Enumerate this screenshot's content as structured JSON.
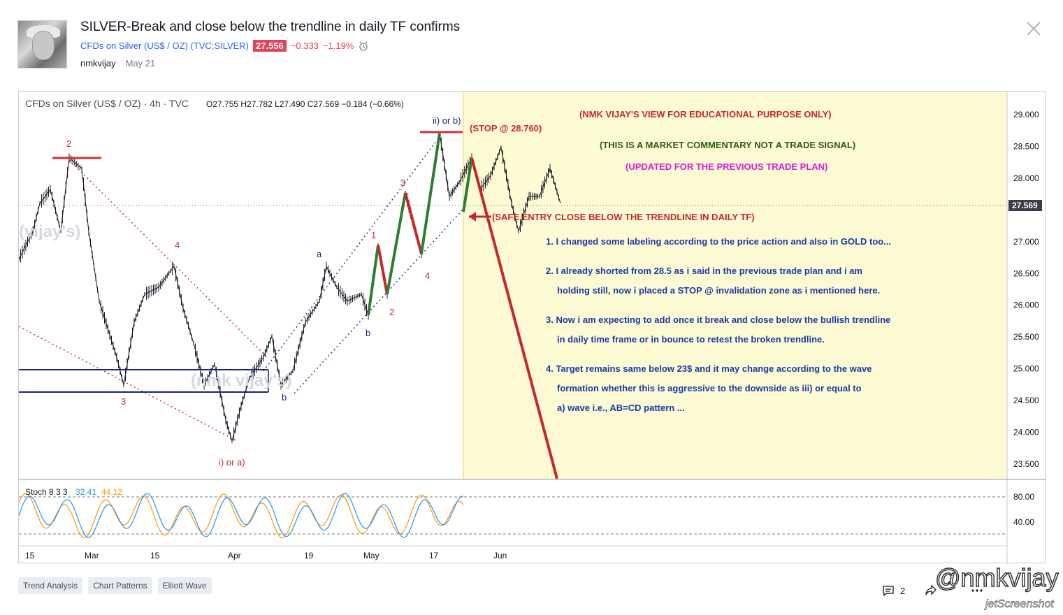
{
  "idea": {
    "title": "SILVER-Break and close below the trendline in daily TF confirms",
    "symbol_link": "CFDs on Silver (US$ / OZ) (TVC:SILVER)",
    "price": "27.556",
    "change": "−0.333",
    "change_pct": "−1.19%",
    "author": "nmkvijay",
    "date": "May 21"
  },
  "chart": {
    "header_name": "CFDs on Silver (US$ / OZ) · 4h · TVC",
    "ohlc": "O27.755  H27.782  L27.490  C27.569  −0.184 (−0.66%)",
    "price_axis": [
      "29.000",
      "28.500",
      "28.000",
      "27.000",
      "26.500",
      "26.000",
      "25.500",
      "25.000",
      "24.500",
      "24.000",
      "23.500"
    ],
    "last_price": "27.569",
    "time_axis": [
      "15",
      "Mar",
      "15",
      "Apr",
      "19",
      "May",
      "17",
      "Jun"
    ],
    "stoch_label": "Stoch 8 3 3",
    "stoch_k": "32.41",
    "stoch_d": "44.12",
    "stoch_axis": [
      "80.00",
      "40.00"
    ],
    "colors": {
      "up_candle": "#000000",
      "trend_red": "#c62828",
      "trend_blue": "#1a237e",
      "highlight_bg": "#fdfbd3",
      "stoch_k": "#2196f3",
      "stoch_d": "#ff9800"
    }
  },
  "annotations": {
    "view": "(NMK VIJAY'S VIEW FOR EDUCATIONAL PURPOSE ONLY)",
    "commentary": "(THIS IS A MARKET COMMENTARY NOT A TRADE SIGNAL)",
    "updated": "(UPDATED FOR THE PREVIOUS TRADE PLAN)",
    "stop": "(STOP @ 28.760)",
    "safe_entry": "(SAFE ENTRY CLOSE BELOW THE TRENDLINE IN DAILY TF)",
    "note1": "1. I changed some labeling according to the price action and also in GOLD too...",
    "note2a": "2. I already shorted from 28.5 as i said in the previous trade plan and i am",
    "note2b": "holding still, now i placed a STOP @ invalidation zone as i mentioned here.",
    "note3a": "3. Now i am expecting to add once it break and close below the bullish trendline",
    "note3b": "in daily time frame or in bounce to retest the broken trendline.",
    "note4a": "4. Target remains same below 23$ and it may change according to the wave",
    "note4b": "formation whether this is aggressive to the downside as iii) or equal to",
    "note4c": "a) wave i.e., AB=CD pattern ...",
    "wave_2": "2",
    "wave_3": "3",
    "wave_4": "4",
    "wave_i": "i) or a)",
    "wave_ii": "ii) or b)",
    "wave_a": "a",
    "wave_b": "b",
    "wave_b2": "b",
    "sub_1": "1",
    "sub_2": "2",
    "sub_3": "3",
    "sub_4": "4",
    "wm1": "(vijay's)",
    "wm2": "(nmk vijay's)"
  },
  "tags": [
    "Trend Analysis",
    "Chart Patterns",
    "Elliott Wave"
  ],
  "comments_count": "2",
  "watermark": "@nmkvijay",
  "jet_watermark": "jetScreenshot"
}
